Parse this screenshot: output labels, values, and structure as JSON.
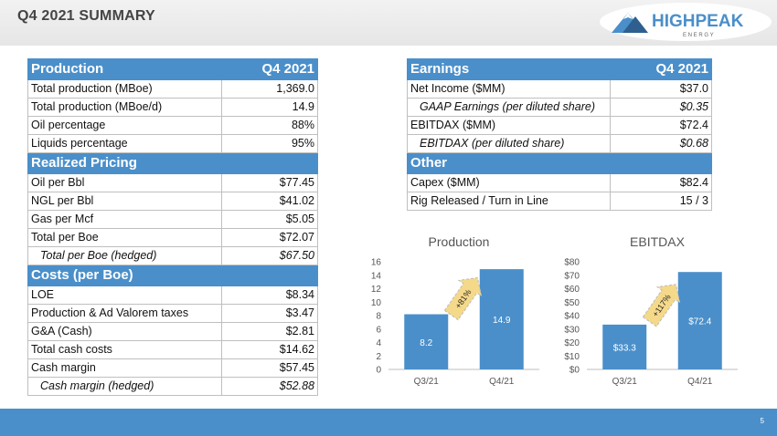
{
  "header": {
    "title": "Q4 2021 SUMMARY",
    "logo_text": "HIGHPEAK",
    "logo_sub": "E N E R G Y"
  },
  "footer": {
    "page_number": "5"
  },
  "left_table": {
    "sections": [
      {
        "title": "Production",
        "col": "Q4 2021",
        "rows": [
          {
            "label": "Total production (MBoe)",
            "value": "1,369.0",
            "italic": false
          },
          {
            "label": "Total production (MBoe/d)",
            "value": "14.9",
            "italic": false
          },
          {
            "label": "Oil percentage",
            "value": "88%",
            "italic": false
          },
          {
            "label": "Liquids percentage",
            "value": "95%",
            "italic": false
          }
        ]
      },
      {
        "title": "Realized Pricing",
        "col": "",
        "rows": [
          {
            "label": "Oil per Bbl",
            "value": "$77.45",
            "italic": false
          },
          {
            "label": "NGL per Bbl",
            "value": "$41.02",
            "italic": false
          },
          {
            "label": "Gas per Mcf",
            "value": "$5.05",
            "italic": false
          },
          {
            "label": "Total per Boe",
            "value": "$72.07",
            "italic": false
          },
          {
            "label": "Total per Boe (hedged)",
            "value": "$67.50",
            "italic": true
          }
        ]
      },
      {
        "title": "Costs (per Boe)",
        "col": "",
        "rows": [
          {
            "label": "LOE",
            "value": "$8.34",
            "italic": false
          },
          {
            "label": "Production & Ad Valorem taxes",
            "value": "$3.47",
            "italic": false
          },
          {
            "label": "G&A (Cash)",
            "value": "$2.81",
            "italic": false
          },
          {
            "label": "Total cash costs",
            "value": "$14.62",
            "italic": false
          },
          {
            "label": "Cash margin",
            "value": "$57.45",
            "italic": false
          },
          {
            "label": "Cash margin (hedged)",
            "value": "$52.88",
            "italic": true
          }
        ]
      }
    ]
  },
  "right_table": {
    "sections": [
      {
        "title": "Earnings",
        "col": "Q4 2021",
        "rows": [
          {
            "label": "Net Income ($MM)",
            "value": "$37.0",
            "italic": false
          },
          {
            "label": "GAAP Earnings (per diluted share)",
            "value": "$0.35",
            "italic": true
          },
          {
            "label": "EBITDAX ($MM)",
            "value": "$72.4",
            "italic": false
          },
          {
            "label": "EBITDAX (per diluted share)",
            "value": "$0.68",
            "italic": true
          }
        ]
      },
      {
        "title": "Other",
        "col": "",
        "rows": [
          {
            "label": "Capex ($MM)",
            "value": "$82.4",
            "italic": false
          },
          {
            "label": "Rig Released  / Turn in Line",
            "value": "15 / 3",
            "italic": false
          }
        ]
      }
    ]
  },
  "chart_data": [
    {
      "type": "bar",
      "title": "Production",
      "categories": [
        "Q3/21",
        "Q4/21"
      ],
      "values": [
        8.2,
        14.9
      ],
      "value_labels": [
        "8.2",
        "14.9"
      ],
      "ylim": [
        0,
        16
      ],
      "ticks": [
        "0",
        "2",
        "4",
        "6",
        "8",
        "10",
        "12",
        "14",
        "16"
      ],
      "growth_label": "+81%",
      "color": "#4a8fca",
      "grid": false
    },
    {
      "type": "bar",
      "title": "EBITDAX",
      "categories": [
        "Q3/21",
        "Q4/21"
      ],
      "values": [
        33.3,
        72.4
      ],
      "value_labels": [
        "$33.3",
        "$72.4"
      ],
      "ylim": [
        0,
        80
      ],
      "ticks": [
        "$0",
        "$10",
        "$20",
        "$30",
        "$40",
        "$50",
        "$60",
        "$70",
        "$80"
      ],
      "growth_label": "+117%",
      "color": "#4a8fca",
      "grid": false
    }
  ]
}
